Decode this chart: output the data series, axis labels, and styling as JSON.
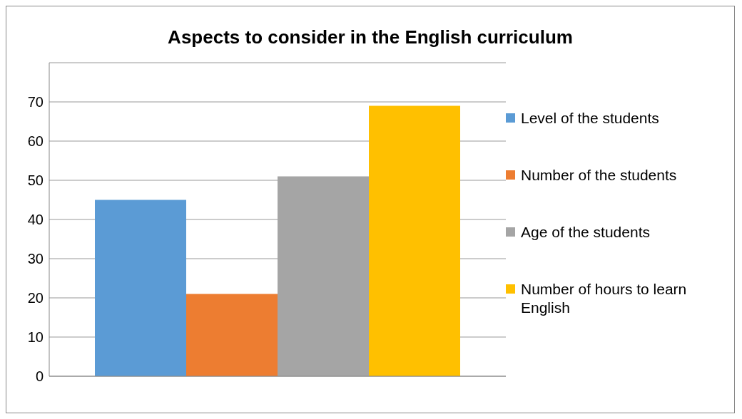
{
  "chart_data": {
    "type": "bar",
    "title": "Aspects to consider in the English curriculum",
    "categories": [
      null
    ],
    "series": [
      {
        "name": "Level of the students",
        "color": "#5b9bd5",
        "values": [
          45
        ]
      },
      {
        "name": "Number of the students",
        "color": "#ed7d31",
        "values": [
          21
        ]
      },
      {
        "name": "Age of the students",
        "color": "#a5a5a5",
        "values": [
          51
        ]
      },
      {
        "name": "Number of hours to learn English",
        "color": "#ffc000",
        "values": [
          69
        ]
      }
    ],
    "ylim": [
      0,
      80
    ],
    "yticks": [
      0,
      10,
      20,
      30,
      40,
      50,
      60,
      70,
      {
        "value": 80,
        "label": null
      }
    ],
    "grid": "y",
    "legend": "right"
  }
}
